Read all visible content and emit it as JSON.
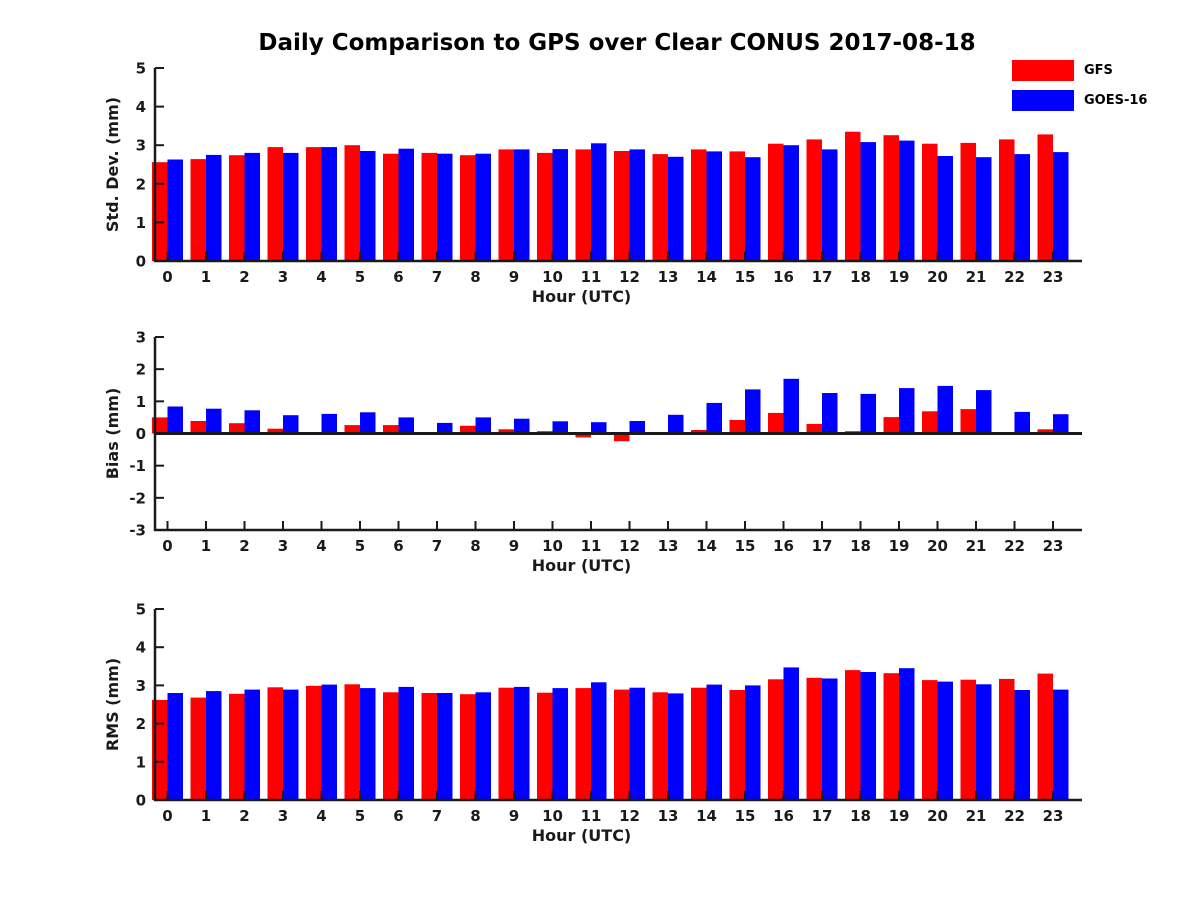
{
  "title": "Daily Comparison to GPS over Clear CONUS 2017-08-18",
  "legend": {
    "position": "top-right",
    "items": [
      {
        "label": "GFS",
        "color": "#ff0000"
      },
      {
        "label": "GOES-16",
        "color": "#0000ff"
      }
    ]
  },
  "colors": {
    "background": "#ffffff",
    "axis": "#1a1a1a",
    "gfs": "#ff0000",
    "goes16": "#0000ff"
  },
  "chart_data": [
    {
      "type": "bar",
      "title": "",
      "xlabel": "Hour (UTC)",
      "ylabel": "Std. Dev. (mm)",
      "ylim": [
        0,
        5
      ],
      "yticks": [
        0,
        1,
        2,
        3,
        4,
        5
      ],
      "grid": false,
      "legend_position": "top-right",
      "categories": [
        "0",
        "1",
        "2",
        "3",
        "4",
        "5",
        "6",
        "7",
        "8",
        "9",
        "10",
        "11",
        "12",
        "13",
        "14",
        "15",
        "16",
        "17",
        "18",
        "19",
        "20",
        "21",
        "22",
        "23"
      ],
      "series": [
        {
          "name": "GFS",
          "color": "#ff0000",
          "values": [
            2.56,
            2.64,
            2.74,
            2.95,
            2.95,
            3.0,
            2.78,
            2.8,
            2.74,
            2.89,
            2.8,
            2.89,
            2.85,
            2.77,
            2.89,
            2.84,
            3.04,
            3.15,
            3.35,
            3.26,
            3.04,
            3.06,
            3.15,
            3.28
          ]
        },
        {
          "name": "GOES-16",
          "color": "#0000ff",
          "values": [
            2.63,
            2.75,
            2.8,
            2.8,
            2.95,
            2.85,
            2.91,
            2.78,
            2.78,
            2.89,
            2.9,
            3.05,
            2.89,
            2.7,
            2.84,
            2.69,
            3.0,
            2.89,
            3.08,
            3.12,
            2.72,
            2.69,
            2.77,
            2.82
          ]
        }
      ]
    },
    {
      "type": "bar",
      "title": "",
      "xlabel": "Hour (UTC)",
      "ylabel": "Bias (mm)",
      "ylim": [
        -3,
        3
      ],
      "yticks": [
        -3,
        -2,
        -1,
        0,
        1,
        2,
        3
      ],
      "grid": false,
      "zero_line": true,
      "categories": [
        "0",
        "1",
        "2",
        "3",
        "4",
        "5",
        "6",
        "7",
        "8",
        "9",
        "10",
        "11",
        "12",
        "13",
        "14",
        "15",
        "16",
        "17",
        "18",
        "19",
        "20",
        "21",
        "22",
        "23"
      ],
      "series": [
        {
          "name": "GFS",
          "color": "#ff0000",
          "values": [
            0.5,
            0.39,
            0.32,
            0.15,
            0.04,
            0.26,
            0.26,
            0.03,
            0.24,
            0.13,
            0.07,
            -0.12,
            -0.24,
            0.02,
            0.11,
            0.42,
            0.64,
            0.3,
            0.07,
            0.51,
            0.69,
            0.76,
            0.02,
            0.13
          ]
        },
        {
          "name": "GOES-16",
          "color": "#0000ff",
          "values": [
            0.84,
            0.77,
            0.72,
            0.57,
            0.61,
            0.66,
            0.5,
            0.33,
            0.5,
            0.46,
            0.38,
            0.35,
            0.39,
            0.58,
            0.95,
            1.37,
            1.7,
            1.26,
            1.23,
            1.41,
            1.48,
            1.35,
            0.67,
            0.6
          ]
        }
      ]
    },
    {
      "type": "bar",
      "title": "",
      "xlabel": "Hour (UTC)",
      "ylabel": "RMS (mm)",
      "ylim": [
        0,
        5
      ],
      "yticks": [
        0,
        1,
        2,
        3,
        4,
        5
      ],
      "grid": false,
      "categories": [
        "0",
        "1",
        "2",
        "3",
        "4",
        "5",
        "6",
        "7",
        "8",
        "9",
        "10",
        "11",
        "12",
        "13",
        "14",
        "15",
        "16",
        "17",
        "18",
        "19",
        "20",
        "21",
        "22",
        "23"
      ],
      "series": [
        {
          "name": "GFS",
          "color": "#ff0000",
          "values": [
            2.62,
            2.68,
            2.78,
            2.95,
            2.99,
            3.03,
            2.82,
            2.8,
            2.77,
            2.94,
            2.81,
            2.93,
            2.89,
            2.82,
            2.94,
            2.88,
            3.16,
            3.2,
            3.4,
            3.32,
            3.14,
            3.15,
            3.17,
            3.31
          ]
        },
        {
          "name": "GOES-16",
          "color": "#0000ff",
          "values": [
            2.8,
            2.85,
            2.89,
            2.89,
            3.02,
            2.93,
            2.96,
            2.8,
            2.82,
            2.96,
            2.93,
            3.08,
            2.94,
            2.79,
            3.02,
            3.0,
            3.47,
            3.18,
            3.35,
            3.45,
            3.1,
            3.03,
            2.88,
            2.89
          ]
        }
      ]
    }
  ]
}
